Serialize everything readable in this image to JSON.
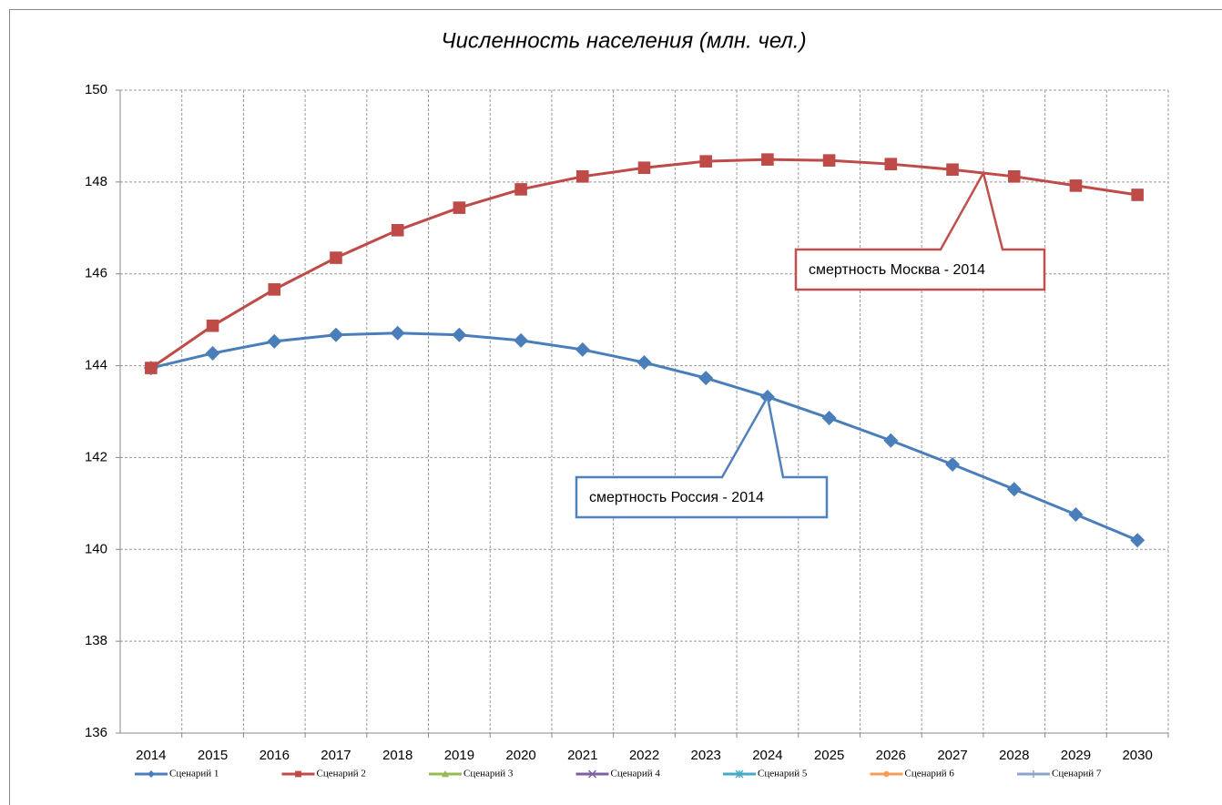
{
  "chart_data": {
    "type": "line",
    "title": "Численность населения (млн. чел.)",
    "categories": [
      "2014",
      "2015",
      "2016",
      "2017",
      "2018",
      "2019",
      "2020",
      "2021",
      "2022",
      "2023",
      "2024",
      "2025",
      "2026",
      "2027",
      "2028",
      "2029",
      "2030"
    ],
    "series": [
      {
        "name": "Сценарий 1",
        "color": "#4a7ebb",
        "marker": "diamond",
        "values": [
          143.95,
          144.27,
          144.53,
          144.67,
          144.71,
          144.67,
          144.55,
          144.35,
          144.07,
          143.73,
          143.32,
          142.86,
          142.37,
          141.85,
          141.31,
          140.76,
          140.2
        ]
      },
      {
        "name": "Сценарий 2",
        "color": "#be4b48",
        "marker": "square",
        "values": [
          143.95,
          144.87,
          145.66,
          146.35,
          146.95,
          147.44,
          147.84,
          148.12,
          148.31,
          148.45,
          148.49,
          148.47,
          148.39,
          148.27,
          148.12,
          147.92,
          147.72
        ]
      },
      {
        "name": "Сценарий 3",
        "color": "#98b954",
        "marker": "triangle",
        "values": [
          null,
          null,
          null,
          null,
          null,
          null,
          null,
          null,
          null,
          null,
          null,
          null,
          null,
          null,
          null,
          null,
          null
        ]
      },
      {
        "name": "Сценарий 4",
        "color": "#7d60a0",
        "marker": "x",
        "values": [
          null,
          null,
          null,
          null,
          null,
          null,
          null,
          null,
          null,
          null,
          null,
          null,
          null,
          null,
          null,
          null,
          null
        ]
      },
      {
        "name": "Сценарий 5",
        "color": "#46aac5",
        "marker": "star",
        "values": [
          null,
          null,
          null,
          null,
          null,
          null,
          null,
          null,
          null,
          null,
          null,
          null,
          null,
          null,
          null,
          null,
          null
        ]
      },
      {
        "name": "Сценарий 6",
        "color": "#f59d56",
        "marker": "circle",
        "values": [
          null,
          null,
          null,
          null,
          null,
          null,
          null,
          null,
          null,
          null,
          null,
          null,
          null,
          null,
          null,
          null,
          null
        ]
      },
      {
        "name": "Сценарий 7",
        "color": "#8ea5cb",
        "marker": "plus",
        "values": [
          null,
          null,
          null,
          null,
          null,
          null,
          null,
          null,
          null,
          null,
          null,
          null,
          null,
          null,
          null,
          null,
          null
        ]
      }
    ],
    "ylim": [
      136,
      150
    ],
    "yticks": [
      136,
      138,
      140,
      142,
      144,
      146,
      148,
      150
    ],
    "grid": true,
    "legend": "bottom",
    "annotations": [
      {
        "text": "смертность Россия - 2014",
        "color": "#4f81bd"
      },
      {
        "text": "смертность Москва - 2014",
        "color": "#c0504d"
      }
    ]
  }
}
